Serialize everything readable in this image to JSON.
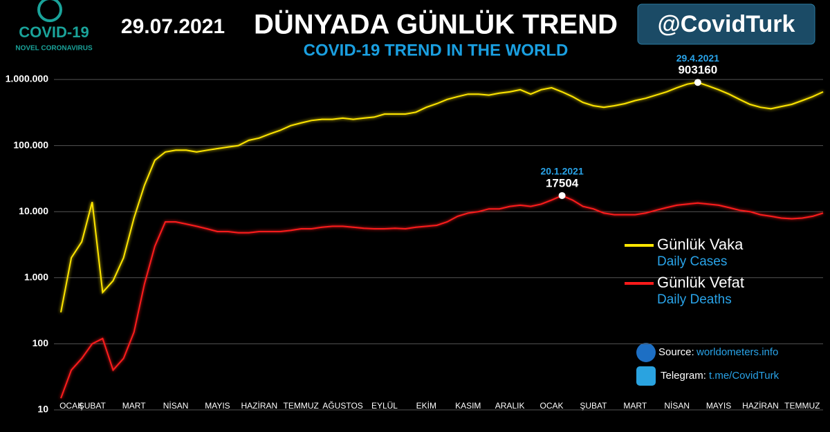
{
  "header": {
    "date": "29.07.2021",
    "title": "DÜNYADA GÜNLÜK TREND",
    "subtitle": "COVID-19 TREND IN THE WORLD",
    "handle": "@CovidTurk",
    "logo_title": "COVID-19",
    "logo_subtitle": "NOVEL CORONAVIRUS"
  },
  "footer": {
    "source_label": "Source:",
    "source": "worldometers.info",
    "telegram_label": "Telegram:",
    "telegram": "t.me/CovidTurk"
  },
  "chart_data": {
    "type": "line",
    "log_scale": true,
    "grid": true,
    "legend": "right",
    "categories": [
      null,
      "OCAK",
      null,
      "ŞUBAT",
      null,
      null,
      null,
      "MART",
      null,
      null,
      null,
      "NİSAN",
      null,
      null,
      null,
      "MAYIS",
      null,
      null,
      null,
      "HAZİRAN",
      null,
      null,
      null,
      "TEMMUZ",
      null,
      null,
      null,
      "AĞUSTOS",
      null,
      null,
      null,
      "EYLÜL",
      null,
      null,
      null,
      "EKİM",
      null,
      null,
      null,
      "KASIM",
      null,
      null,
      null,
      "ARALIK",
      null,
      null,
      null,
      "OCAK",
      null,
      null,
      null,
      "ŞUBAT",
      null,
      null,
      null,
      "MART",
      null,
      null,
      null,
      "NİSAN",
      null,
      null,
      null,
      "MAYIS",
      null,
      null,
      null,
      "HAZİRAN",
      null,
      null,
      null,
      "TEMMUZ",
      null,
      null
    ],
    "series": [
      {
        "name": "Günlük Vaka",
        "name_en": "Daily Cases",
        "color": "#ffe600",
        "peak_date": "29.4.2021",
        "values": [
          300,
          2000,
          3500,
          14000,
          600,
          900,
          2000,
          8000,
          25000,
          60000,
          80000,
          85000,
          85000,
          80000,
          85000,
          90000,
          95000,
          100000,
          120000,
          130000,
          150000,
          170000,
          200000,
          220000,
          240000,
          250000,
          250000,
          260000,
          250000,
          260000,
          270000,
          300000,
          300000,
          300000,
          320000,
          380000,
          430000,
          500000,
          550000,
          600000,
          600000,
          580000,
          620000,
          650000,
          700000,
          600000,
          700000,
          750000,
          650000,
          550000,
          450000,
          400000,
          380000,
          400000,
          430000,
          480000,
          520000,
          580000,
          650000,
          750000,
          850000,
          903160,
          800000,
          700000,
          600000,
          500000,
          420000,
          380000,
          360000,
          390000,
          420000,
          480000,
          550000,
          650000
        ]
      },
      {
        "name": "Günlük Vefat",
        "name_en": "Daily Deaths",
        "color": "#ff1a1a",
        "peak_date": "20.1.2021",
        "values": [
          15,
          40,
          60,
          100,
          120,
          40,
          60,
          150,
          800,
          3000,
          7000,
          7000,
          6500,
          6000,
          5500,
          5000,
          5000,
          4800,
          4800,
          5000,
          5000,
          5000,
          5200,
          5500,
          5500,
          5800,
          6000,
          6000,
          5800,
          5600,
          5500,
          5500,
          5600,
          5500,
          5800,
          6000,
          6200,
          7000,
          8500,
          9500,
          10000,
          11000,
          11000,
          12000,
          12500,
          12000,
          13000,
          15000,
          17504,
          15000,
          12000,
          11000,
          9500,
          9000,
          9000,
          9000,
          9500,
          10500,
          11500,
          12500,
          13000,
          13500,
          13000,
          12500,
          11500,
          10500,
          10000,
          9000,
          8500,
          8000,
          7800,
          8000,
          8500,
          9500
        ]
      }
    ],
    "ylim": [
      10,
      1000000
    ],
    "yticks": [
      10,
      100,
      {
        "value": 1000,
        "label": "1.000"
      },
      {
        "value": 10000,
        "label": "10.000"
      },
      {
        "value": 100000,
        "label": "100.000"
      },
      {
        "value": 1000000,
        "label": "1.000.000"
      }
    ]
  }
}
